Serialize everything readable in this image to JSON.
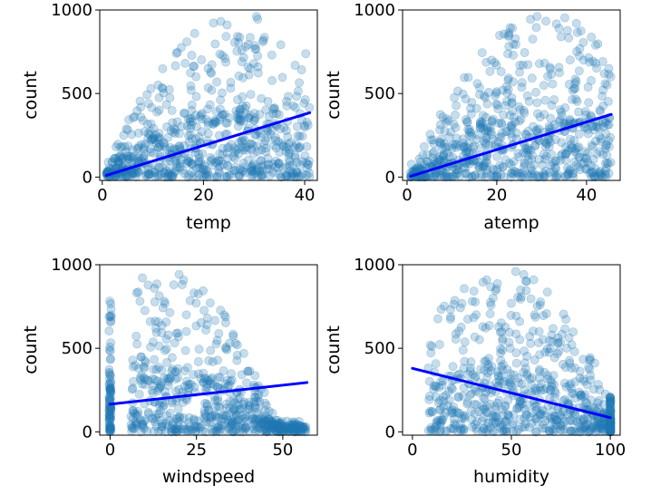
{
  "figure": {
    "rows": 2,
    "cols": 2
  },
  "colors": {
    "scatter": "#1f77b4",
    "fit_line": "#0000ff",
    "axes": "#000000",
    "background": "#ffffff"
  },
  "chart_data": [
    {
      "type": "scatter",
      "xlabel": "temp",
      "ylabel": "count",
      "xlim": [
        -0.5,
        42.5
      ],
      "ylim": [
        -20,
        1000
      ],
      "xticks": [
        0,
        20,
        40
      ],
      "yticks": [
        0,
        500,
        1000
      ],
      "cloud": {
        "x_range": [
          0.8,
          41
        ],
        "peak_x": 27,
        "max_y": 977,
        "spread_y": 420
      },
      "fit_line": {
        "x": [
          0.8,
          41
        ],
        "y": [
          10,
          385
        ]
      },
      "point_alpha": 0.25
    },
    {
      "type": "scatter",
      "xlabel": "atemp",
      "ylabel": "count",
      "xlim": [
        -1,
        47.5
      ],
      "ylim": [
        -20,
        1000
      ],
      "xticks": [
        0,
        20,
        40
      ],
      "yticks": [
        0,
        500,
        1000
      ],
      "cloud": {
        "x_range": [
          0.76,
          45.5
        ],
        "peak_x": 31,
        "max_y": 977,
        "spread_y": 420
      },
      "fit_line": {
        "x": [
          0.76,
          45.5
        ],
        "y": [
          5,
          375
        ]
      },
      "point_alpha": 0.25
    },
    {
      "type": "scatter",
      "xlabel": "windspeed",
      "ylabel": "count",
      "xlim": [
        -3,
        60
      ],
      "ylim": [
        -20,
        1000
      ],
      "xticks": [
        0,
        25,
        50
      ],
      "yticks": [
        0,
        500,
        1000
      ],
      "cloud": {
        "x_range": [
          6,
          57
        ],
        "peak_x": 15,
        "max_y": 970,
        "spread_y": 400,
        "stack_at_x": 0
      },
      "fit_line": {
        "x": [
          0,
          57
        ],
        "y": [
          165,
          295
        ]
      },
      "point_alpha": 0.25
    },
    {
      "type": "scatter",
      "xlabel": "humidity",
      "ylabel": "count",
      "xlim": [
        -5,
        105
      ],
      "ylim": [
        -20,
        1000
      ],
      "xticks": [
        0,
        50,
        100
      ],
      "yticks": [
        0,
        500,
        1000
      ],
      "cloud": {
        "x_range": [
          8,
          100
        ],
        "peak_x": 45,
        "max_y": 977,
        "spread_y": 420,
        "stack_at_x": 100
      },
      "fit_line": {
        "x": [
          0,
          100
        ],
        "y": [
          380,
          85
        ]
      },
      "point_alpha": 0.25
    }
  ]
}
